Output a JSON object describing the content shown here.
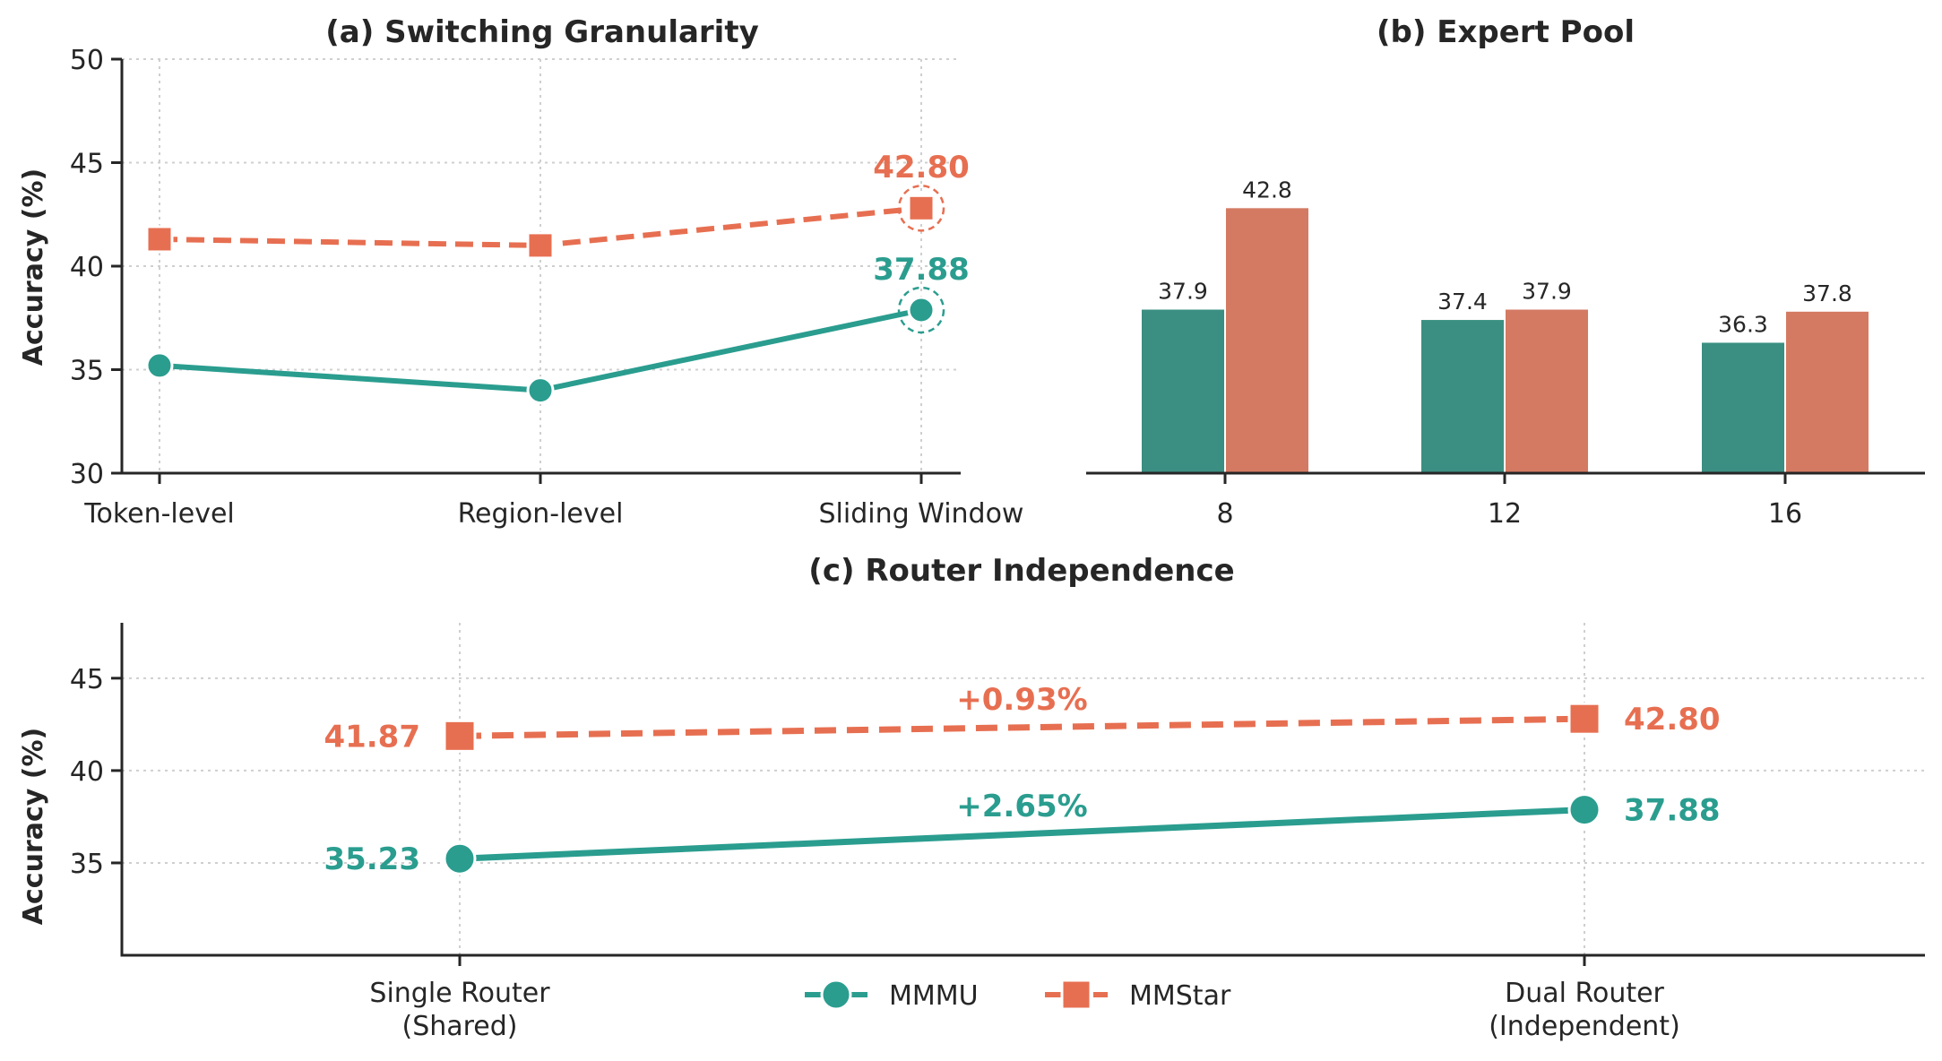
{
  "colors": {
    "mmmu": "#2a9d8f",
    "mmstar": "#e76f51",
    "bar_mmmu": "#3a8f82",
    "bar_mmstar": "#d47a63"
  },
  "legend": {
    "mmmu": "MMMU",
    "mmstar": "MMStar"
  },
  "chart_data": [
    {
      "type": "line",
      "title": "(a) Switching Granularity",
      "ylabel": "Accuracy (%)",
      "xlabel": "",
      "categories": [
        "Token-level",
        "Region-level",
        "Sliding Window"
      ],
      "ylim": [
        30,
        50
      ],
      "yticks": [
        "30",
        "35",
        "40",
        "45",
        "50"
      ],
      "grid": true,
      "series": [
        {
          "name": "MMMU",
          "values": [
            35.2,
            34.0,
            37.88
          ]
        },
        {
          "name": "MMStar",
          "values": [
            41.3,
            41.0,
            42.8
          ]
        }
      ],
      "highlight_labels": {
        "mmmu": "37.88",
        "mmstar": "42.80"
      }
    },
    {
      "type": "bar",
      "title": "(b) Expert Pool",
      "categories": [
        "8",
        "12",
        "16"
      ],
      "ylim": [
        30,
        50
      ],
      "grid": false,
      "series": [
        {
          "name": "MMMU",
          "values": [
            37.9,
            37.4,
            36.3
          ],
          "labels": [
            "37.9",
            "37.4",
            "36.3"
          ]
        },
        {
          "name": "MMStar",
          "values": [
            42.8,
            37.9,
            37.8
          ],
          "labels": [
            "42.8",
            "37.9",
            "37.8"
          ]
        }
      ]
    },
    {
      "type": "line",
      "title": "(c) Router Independence",
      "ylabel": "Accuracy (%)",
      "categories": [
        "Single Router (Shared)",
        "Dual Router (Independent)"
      ],
      "category_lines": [
        [
          "Single Router",
          "(Shared)"
        ],
        [
          "Dual Router",
          "(Independent)"
        ]
      ],
      "ylim": [
        30,
        48
      ],
      "yticks": [
        "35",
        "40",
        "45"
      ],
      "grid": true,
      "series": [
        {
          "name": "MMMU",
          "values": [
            35.23,
            37.88
          ],
          "labels": [
            "35.23",
            "37.88"
          ],
          "delta": "+2.65%"
        },
        {
          "name": "MMStar",
          "values": [
            41.87,
            42.8
          ],
          "labels": [
            "41.87",
            "42.80"
          ],
          "delta": "+0.93%"
        }
      ]
    }
  ]
}
